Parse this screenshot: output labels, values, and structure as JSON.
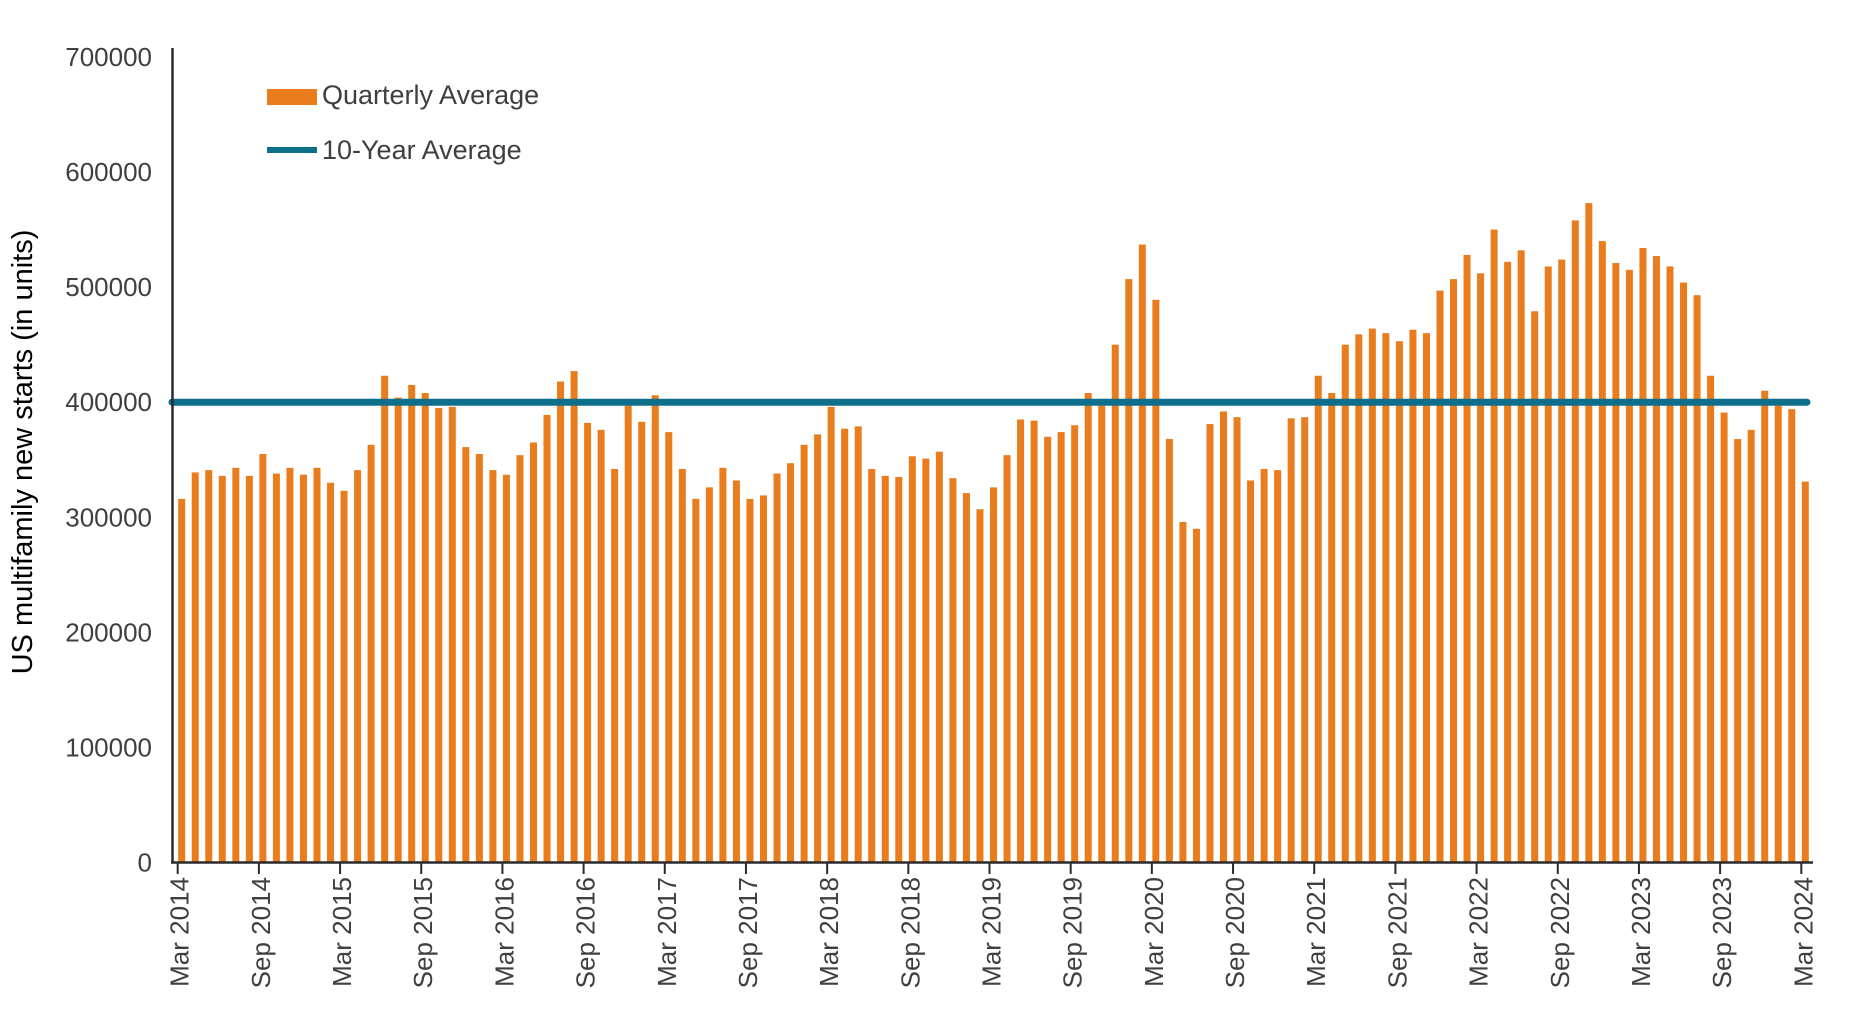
{
  "colors": {
    "bar": "#E97C1C",
    "avg_line": "#0E6F8C",
    "axis": "#2B2B2B",
    "tick_text": "#3F3F3F",
    "axis_title": "#000000",
    "background": "#FFFFFF"
  },
  "chart_data": {
    "type": "bar",
    "title": "",
    "xlabel": "",
    "ylabel": "US multifamily new starts (in units)",
    "ylim": [
      0,
      700000
    ],
    "grid": false,
    "legend_position": "top-left",
    "x_frequency": "monthly",
    "x_start": "Mar 2014",
    "x_end": "Mar 2024",
    "y_ticks": [
      0,
      100000,
      200000,
      300000,
      400000,
      500000,
      600000,
      700000
    ],
    "x_tick_labels": [
      "Mar 2014",
      "Sep 2014",
      "Mar 2015",
      "Sep 2015",
      "Mar 2016",
      "Sep 2016",
      "Mar 2017",
      "Sep 2017",
      "Mar 2018",
      "Sep 2018",
      "Mar 2019",
      "Sep 2019",
      "Mar 2020",
      "Sep 2020",
      "Mar 2021",
      "Sep 2021",
      "Mar 2022",
      "Sep 2022",
      "Mar 2023",
      "Sep 2023",
      "Mar 2024"
    ],
    "x_tick_every_months": 6,
    "series": [
      {
        "name": "Quarterly Average",
        "type": "bar",
        "color": "#E97C1C",
        "values": [
          316000,
          339000,
          341000,
          336000,
          343000,
          336000,
          355000,
          338000,
          343000,
          337000,
          343000,
          330000,
          323000,
          341000,
          363000,
          423000,
          404000,
          415000,
          408000,
          395000,
          396000,
          361000,
          355000,
          341000,
          337000,
          354000,
          365000,
          389000,
          418000,
          427000,
          382000,
          376000,
          342000,
          397000,
          383000,
          406000,
          374000,
          342000,
          316000,
          326000,
          343000,
          332000,
          316000,
          319000,
          338000,
          347000,
          363000,
          372000,
          396000,
          377000,
          379000,
          342000,
          336000,
          335000,
          353000,
          351000,
          357000,
          334000,
          321000,
          307000,
          326000,
          354000,
          385000,
          384000,
          370000,
          374000,
          380000,
          408000,
          397000,
          450000,
          507000,
          537000,
          489000,
          368000,
          296000,
          290000,
          381000,
          392000,
          387000,
          332000,
          342000,
          341000,
          386000,
          387000,
          423000,
          408000,
          450000,
          459000,
          464000,
          460000,
          453000,
          463000,
          460000,
          497000,
          507000,
          528000,
          512000,
          550000,
          522000,
          532000,
          479000,
          518000,
          524000,
          558000,
          573000,
          540000,
          521000,
          515000,
          534000,
          527000,
          518000,
          504000,
          493000,
          423000,
          391000,
          368000,
          376000,
          410000,
          397000,
          394000,
          331000
        ]
      },
      {
        "name": "10-Year Average",
        "type": "line",
        "color": "#0E6F8C",
        "value": 400000
      }
    ]
  }
}
